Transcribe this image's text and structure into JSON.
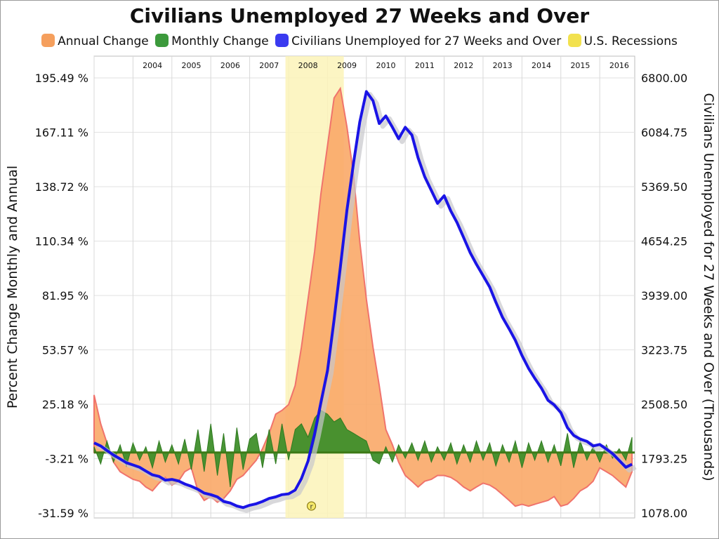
{
  "chart_data": {
    "type": "line",
    "title": "Civilians Unemployed 27 Weeks and Over",
    "legend": [
      {
        "name": "Annual Change",
        "color": "#f59f5d"
      },
      {
        "name": "Monthly Change",
        "color": "#3c9a3c"
      },
      {
        "name": "Civilians Unemployed for 27 Weeks and Over",
        "color": "#3a3af0"
      },
      {
        "name": "U.S. Recessions",
        "color": "#f2e14e"
      }
    ],
    "legend_position": "top",
    "ylabel_left": "Percent Change Monthly and Annual",
    "ylabel_right": "Civilians Unemployed for 27 Weeks and Over (Thousands)",
    "left_ticks": [
      "195.49 %",
      "167.11 %",
      "138.72 %",
      "110.34 %",
      "81.95 %",
      "53.57 %",
      "25.18 %",
      "-3.21 %",
      "-31.59 %"
    ],
    "right_ticks": [
      "6800.00",
      "6084.75",
      "5369.50",
      "4654.25",
      "3939.00",
      "3223.75",
      "2508.50",
      "1793.25",
      "1078.00"
    ],
    "left_range": [
      -31.59,
      195.49
    ],
    "right_range": [
      1078,
      6800
    ],
    "x_range": [
      2003.0,
      2016.9
    ],
    "years": [
      "2004",
      "2005",
      "2006",
      "2007",
      "2008",
      "2009",
      "2010",
      "2011",
      "2012",
      "2013",
      "2014",
      "2015",
      "2016"
    ],
    "grid": true,
    "recession": {
      "start": 2007.92,
      "end": 2009.42,
      "marker": "r"
    },
    "series": [
      {
        "name": "Civilians Unemployed for 27 Weeks and Over",
        "axis": "right",
        "x": [
          2003.0,
          2003.17,
          2003.33,
          2003.5,
          2003.67,
          2003.83,
          2004.0,
          2004.17,
          2004.33,
          2004.5,
          2004.67,
          2004.83,
          2005.0,
          2005.17,
          2005.33,
          2005.5,
          2005.67,
          2005.83,
          2006.0,
          2006.17,
          2006.33,
          2006.5,
          2006.67,
          2006.83,
          2007.0,
          2007.17,
          2007.33,
          2007.5,
          2007.67,
          2007.83,
          2008.0,
          2008.17,
          2008.33,
          2008.5,
          2008.67,
          2008.83,
          2009.0,
          2009.17,
          2009.33,
          2009.5,
          2009.67,
          2009.83,
          2010.0,
          2010.17,
          2010.33,
          2010.5,
          2010.67,
          2010.83,
          2011.0,
          2011.17,
          2011.33,
          2011.5,
          2011.67,
          2011.83,
          2012.0,
          2012.17,
          2012.33,
          2012.5,
          2012.67,
          2012.83,
          2013.0,
          2013.17,
          2013.33,
          2013.5,
          2013.67,
          2013.83,
          2014.0,
          2014.17,
          2014.33,
          2014.5,
          2014.67,
          2014.83,
          2015.0,
          2015.17,
          2015.33,
          2015.5,
          2015.67,
          2015.83,
          2016.0,
          2016.17,
          2016.33,
          2016.5,
          2016.67,
          2016.83
        ],
        "values": [
          2000,
          1960,
          1900,
          1840,
          1790,
          1740,
          1710,
          1680,
          1630,
          1580,
          1560,
          1510,
          1520,
          1500,
          1460,
          1430,
          1390,
          1340,
          1320,
          1290,
          1230,
          1210,
          1170,
          1150,
          1180,
          1200,
          1230,
          1270,
          1290,
          1320,
          1330,
          1380,
          1530,
          1760,
          2120,
          2530,
          2950,
          3620,
          4310,
          5060,
          5680,
          6220,
          6620,
          6500,
          6200,
          6300,
          6150,
          6000,
          6150,
          6050,
          5750,
          5500,
          5320,
          5150,
          5250,
          5050,
          4900,
          4700,
          4500,
          4350,
          4200,
          4050,
          3850,
          3650,
          3500,
          3350,
          3150,
          2980,
          2850,
          2720,
          2560,
          2500,
          2400,
          2200,
          2100,
          2050,
          2020,
          1960,
          1980,
          1920,
          1860,
          1770,
          1680,
          1720
        ]
      },
      {
        "name": "Annual Change",
        "axis": "left",
        "x": [
          2003.0,
          2003.17,
          2003.33,
          2003.5,
          2003.67,
          2003.83,
          2004.0,
          2004.17,
          2004.33,
          2004.5,
          2004.67,
          2004.83,
          2005.0,
          2005.17,
          2005.33,
          2005.5,
          2005.67,
          2005.83,
          2006.0,
          2006.17,
          2006.33,
          2006.5,
          2006.67,
          2006.83,
          2007.0,
          2007.17,
          2007.33,
          2007.5,
          2007.67,
          2007.83,
          2008.0,
          2008.17,
          2008.33,
          2008.5,
          2008.67,
          2008.83,
          2009.0,
          2009.17,
          2009.33,
          2009.5,
          2009.67,
          2009.83,
          2010.0,
          2010.17,
          2010.33,
          2010.5,
          2010.67,
          2010.83,
          2011.0,
          2011.17,
          2011.33,
          2011.5,
          2011.67,
          2011.83,
          2012.0,
          2012.17,
          2012.33,
          2012.5,
          2012.67,
          2012.83,
          2013.0,
          2013.17,
          2013.33,
          2013.5,
          2013.67,
          2013.83,
          2014.0,
          2014.17,
          2014.33,
          2014.5,
          2014.67,
          2014.83,
          2015.0,
          2015.17,
          2015.33,
          2015.5,
          2015.67,
          2015.83,
          2016.0,
          2016.17,
          2016.33,
          2016.5,
          2016.67,
          2016.83
        ],
        "values": [
          30,
          15,
          5,
          -5,
          -10,
          -12,
          -14,
          -15,
          -18,
          -20,
          -16,
          -13,
          -17,
          -15,
          -10,
          -8,
          -20,
          -25,
          -23,
          -26,
          -24,
          -20,
          -14,
          -12,
          -8,
          -4,
          2,
          10,
          20,
          22,
          25,
          35,
          55,
          80,
          105,
          135,
          160,
          185,
          190,
          170,
          145,
          110,
          80,
          55,
          35,
          12,
          4,
          -5,
          -12,
          -15,
          -18,
          -15,
          -14,
          -12,
          -12,
          -13,
          -15,
          -18,
          -20,
          -18,
          -16,
          -17,
          -19,
          -22,
          -25,
          -28,
          -27,
          -28,
          -27,
          -26,
          -25,
          -23,
          -28,
          -27,
          -24,
          -20,
          -18,
          -15,
          -8,
          -10,
          -12,
          -15,
          -18,
          -10
        ]
      },
      {
        "name": "Monthly Change",
        "axis": "left",
        "x": [
          2003.0,
          2003.17,
          2003.33,
          2003.5,
          2003.67,
          2003.83,
          2004.0,
          2004.17,
          2004.33,
          2004.5,
          2004.67,
          2004.83,
          2005.0,
          2005.17,
          2005.33,
          2005.5,
          2005.67,
          2005.83,
          2006.0,
          2006.17,
          2006.33,
          2006.5,
          2006.67,
          2006.83,
          2007.0,
          2007.17,
          2007.33,
          2007.5,
          2007.67,
          2007.83,
          2008.0,
          2008.17,
          2008.33,
          2008.5,
          2008.67,
          2008.83,
          2009.0,
          2009.17,
          2009.33,
          2009.5,
          2009.67,
          2009.83,
          2010.0,
          2010.17,
          2010.33,
          2010.5,
          2010.67,
          2010.83,
          2011.0,
          2011.17,
          2011.33,
          2011.5,
          2011.67,
          2011.83,
          2012.0,
          2012.17,
          2012.33,
          2012.5,
          2012.67,
          2012.83,
          2013.0,
          2013.17,
          2013.33,
          2013.5,
          2013.67,
          2013.83,
          2014.0,
          2014.17,
          2014.33,
          2014.5,
          2014.67,
          2014.83,
          2015.0,
          2015.17,
          2015.33,
          2015.5,
          2015.67,
          2015.83,
          2016.0,
          2016.17,
          2016.33,
          2016.5,
          2016.67,
          2016.83
        ],
        "values": [
          3,
          -6,
          6,
          -5,
          4,
          -7,
          5,
          -4,
          3,
          -8,
          6,
          -5,
          4,
          -6,
          7,
          -9,
          12,
          -10,
          15,
          -12,
          10,
          -18,
          13,
          -9,
          7,
          10,
          -8,
          12,
          -6,
          15,
          -4,
          12,
          15,
          8,
          18,
          22,
          20,
          16,
          18,
          12,
          10,
          8,
          6,
          -4,
          -6,
          3,
          -5,
          4,
          -3,
          5,
          -4,
          6,
          -5,
          3,
          -4,
          5,
          -6,
          4,
          -5,
          6,
          -4,
          5,
          -7,
          4,
          -5,
          6,
          -8,
          5,
          -4,
          6,
          -5,
          4,
          -7,
          10,
          -8,
          6,
          -4,
          3,
          -5,
          4,
          -3,
          2,
          -4,
          8
        ]
      }
    ]
  }
}
